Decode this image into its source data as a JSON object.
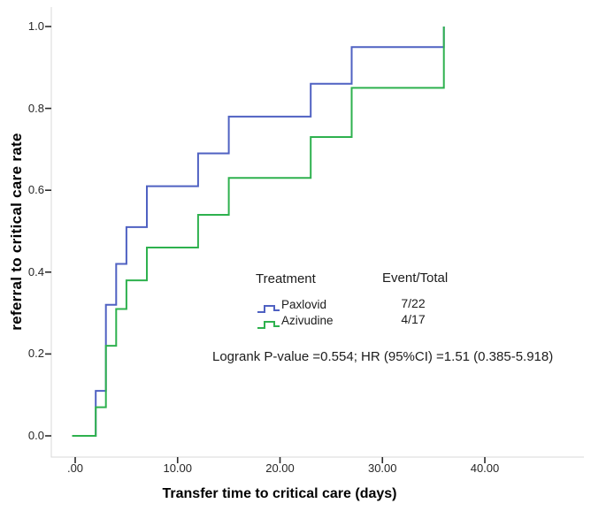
{
  "chart_data": {
    "type": "line",
    "subtype": "kaplan-meier-step",
    "title": "",
    "xlabel": "Transfer time to critical care (days)",
    "ylabel": "referral to critical care rate",
    "xlim": [
      0,
      40
    ],
    "ylim": [
      0.0,
      1.0
    ],
    "grid": false,
    "x_ticks": [
      {
        "value": 0,
        "label": ".00"
      },
      {
        "value": 10,
        "label": "10.00"
      },
      {
        "value": 20,
        "label": "20.00"
      },
      {
        "value": 30,
        "label": "30.00"
      },
      {
        "value": 40,
        "label": "40.00"
      }
    ],
    "y_ticks": [
      {
        "value": 1.0,
        "label": "1.0"
      },
      {
        "value": 0.8,
        "label": "0.8"
      },
      {
        "value": 0.6,
        "label": "0.6"
      },
      {
        "value": 0.4,
        "label": "0.4"
      },
      {
        "value": 0.2,
        "label": "0.2"
      },
      {
        "value": 0.0,
        "label": "0.0"
      }
    ],
    "series": [
      {
        "name": "Paxlovid",
        "event_total": "7/22",
        "color": "#4f61c2",
        "start_day": -0.3,
        "steps": [
          {
            "day": 2,
            "rate": 0.11
          },
          {
            "day": 3,
            "rate": 0.32
          },
          {
            "day": 4,
            "rate": 0.42
          },
          {
            "day": 5,
            "rate": 0.51
          },
          {
            "day": 7,
            "rate": 0.61
          },
          {
            "day": 12,
            "rate": 0.69
          },
          {
            "day": 15,
            "rate": 0.78
          },
          {
            "day": 23,
            "rate": 0.86
          },
          {
            "day": 27,
            "rate": 0.95
          },
          {
            "day": 36,
            "rate": 1.0
          }
        ]
      },
      {
        "name": "Azivudine",
        "event_total": "4/17",
        "color": "#2eb14e",
        "start_day": -0.3,
        "steps": [
          {
            "day": 2,
            "rate": 0.07
          },
          {
            "day": 3,
            "rate": 0.22
          },
          {
            "day": 4,
            "rate": 0.31
          },
          {
            "day": 5,
            "rate": 0.38
          },
          {
            "day": 7,
            "rate": 0.46
          },
          {
            "day": 12,
            "rate": 0.54
          },
          {
            "day": 15,
            "rate": 0.63
          },
          {
            "day": 23,
            "rate": 0.73
          },
          {
            "day": 27,
            "rate": 0.85
          },
          {
            "day": 36,
            "rate": 1.0
          }
        ]
      }
    ],
    "legend": {
      "position": "center-right-inside",
      "col1_header": "Treatment",
      "col2_header": "Event/Total"
    },
    "annotation": "Logrank P-value =0.554; HR (95%CI) =1.51 (0.385-5.918)",
    "axis_color": "#d9d9d9",
    "tick_color": "#2b2b2b"
  }
}
